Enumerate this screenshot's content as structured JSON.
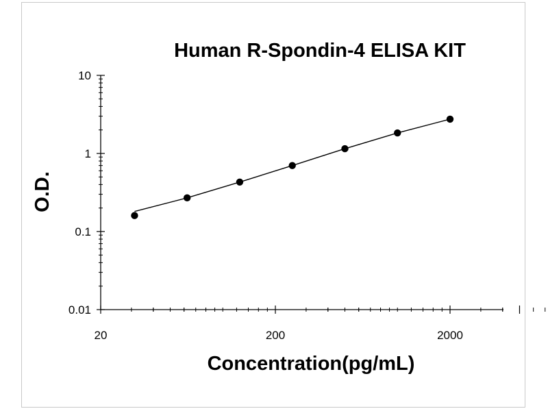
{
  "chart_data": {
    "type": "scatter",
    "title": "Human R-Spondin-4 ELISA KIT",
    "xlabel": "Concentration(pg/mL)",
    "ylabel": "O.D.",
    "x_scale": "log",
    "y_scale": "log",
    "xlim": [
      20,
      5000
    ],
    "ylim": [
      0.01,
      10
    ],
    "x_tick_labels": [
      "20",
      "200",
      "2000"
    ],
    "y_tick_labels": [
      "10",
      "1",
      "0.1",
      "0.01"
    ],
    "grid": false,
    "legend": "none",
    "series": [
      {
        "x": [
          31.25,
          62.5,
          125,
          250,
          500,
          1000,
          2000
        ],
        "y": [
          0.16,
          0.27,
          0.43,
          0.7,
          1.15,
          1.83,
          2.75
        ]
      }
    ],
    "marker_color": "#000000",
    "line_color": "#000000"
  }
}
